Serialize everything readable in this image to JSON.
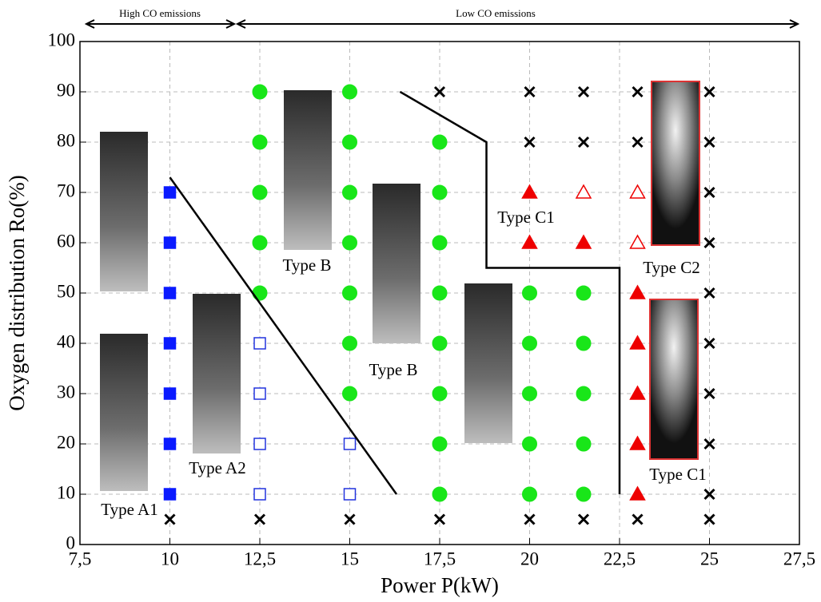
{
  "chart_data": {
    "type": "scatter",
    "x_label": "Power P(kW)",
    "y_label": "Oxygen distribution Ro(%)",
    "xlim": [
      7.5,
      27.5
    ],
    "xticks": [
      {
        "value": 7.5,
        "label": "7,5"
      },
      10,
      {
        "value": 12.5,
        "label": "12,5"
      },
      15,
      {
        "value": 17.5,
        "label": "17,5"
      },
      20,
      {
        "value": 22.5,
        "label": "22,5"
      },
      25,
      {
        "value": 27.5,
        "label": "27,5"
      }
    ],
    "ylim": [
      0,
      100
    ],
    "yticks": [
      0,
      10,
      20,
      30,
      40,
      50,
      60,
      70,
      80,
      90,
      100
    ],
    "grid": true,
    "regions": [
      "High CO emissions",
      "Low CO emissions"
    ],
    "annotations": [
      "Type A1",
      "Type A2",
      "Type B",
      "Type B",
      "Type C1",
      "Type C1",
      "Type C2"
    ],
    "series": [
      {
        "marker": "square",
        "filled": true,
        "color": "#0a1aff",
        "x": [
          10,
          10,
          10,
          10,
          10,
          10,
          10
        ],
        "values": [
          10,
          20,
          30,
          40,
          50,
          60,
          70
        ]
      },
      {
        "marker": "square",
        "filled": false,
        "color": "#2233dd",
        "x": [
          12.5,
          12.5,
          12.5,
          12.5,
          15,
          15
        ],
        "values": [
          10,
          20,
          30,
          40,
          10,
          20
        ]
      },
      {
        "marker": "circle",
        "filled": true,
        "color": "#19e619",
        "x": [
          12.5,
          12.5,
          12.5,
          12.5,
          12.5,
          15,
          15,
          15,
          15,
          15,
          15,
          15,
          17.5,
          17.5,
          17.5,
          17.5,
          17.5,
          17.5,
          17.5,
          17.5,
          20,
          20,
          20,
          20,
          20,
          21.5,
          21.5,
          21.5,
          21.5,
          21.5
        ],
        "values": [
          50,
          60,
          70,
          80,
          90,
          30,
          40,
          50,
          60,
          70,
          80,
          90,
          10,
          20,
          30,
          40,
          50,
          60,
          70,
          80,
          10,
          20,
          30,
          40,
          50,
          10,
          20,
          30,
          40,
          50
        ]
      },
      {
        "marker": "cross",
        "filled": true,
        "color": "#000000",
        "x": [
          10,
          12.5,
          15,
          17.5,
          20,
          21.5,
          23,
          25,
          17.5,
          20,
          20,
          21.5,
          21.5,
          23,
          23,
          25,
          25,
          25,
          25,
          25,
          25,
          25,
          25,
          25
        ],
        "values": [
          5,
          5,
          5,
          5,
          5,
          5,
          5,
          5,
          90,
          80,
          90,
          80,
          90,
          80,
          90,
          10,
          20,
          30,
          40,
          50,
          60,
          70,
          80,
          90
        ]
      },
      {
        "marker": "triangle",
        "filled": true,
        "color": "#ee0000",
        "x": [
          20,
          20,
          21.5,
          23,
          23,
          23,
          23,
          23
        ],
        "values": [
          70,
          60,
          60,
          10,
          20,
          30,
          40,
          50
        ]
      },
      {
        "marker": "triangle",
        "filled": false,
        "color": "#ee0000",
        "x": [
          21.5,
          23,
          23
        ],
        "values": [
          70,
          70,
          60
        ]
      },
      {
        "marker": "line",
        "color": "#000000",
        "x": [
          10,
          16.3
        ],
        "values": [
          73,
          10
        ]
      },
      {
        "marker": "line",
        "color": "#000000",
        "x": [
          16.4,
          18.8,
          18.8,
          22.5,
          22.5
        ],
        "values": [
          90,
          80,
          55,
          55,
          10
        ]
      }
    ]
  }
}
